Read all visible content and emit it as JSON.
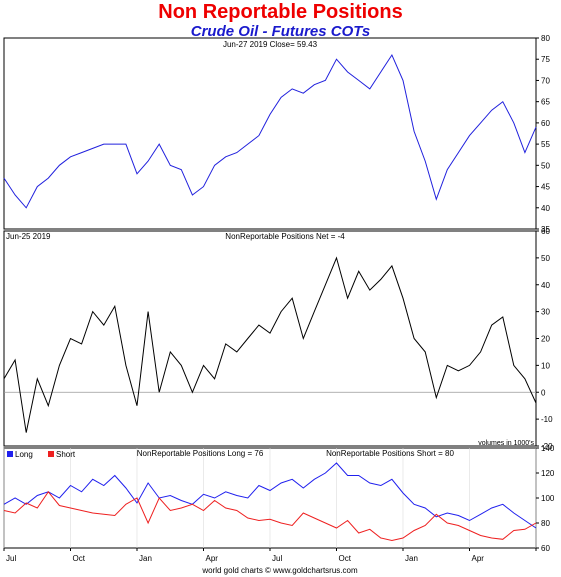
{
  "header": {
    "title": "Non Reportable Positions",
    "subtitle": "Crude Oil - Futures COTs"
  },
  "footer": {
    "credit": "world gold charts © www.goldchartsrus.com"
  },
  "colors": {
    "price": "#2020dd",
    "net": "#000000",
    "long": "#2020ee",
    "short": "#ee2020",
    "title": "#ee0000",
    "subtitle": "#1a1acc"
  },
  "chart_data": [
    {
      "type": "line",
      "panel": "price",
      "annotation": "Jun-27  2019   Close= 59.43",
      "ylim": [
        35,
        80
      ],
      "yticks": [
        35,
        40,
        45,
        50,
        55,
        60,
        65,
        70,
        75,
        80
      ],
      "x_unit": "months since Jul 2017",
      "xlim": [
        0,
        24
      ],
      "x": [
        0,
        0.5,
        1,
        1.5,
        2,
        2.5,
        3,
        3.5,
        4,
        4.5,
        5,
        5.5,
        6,
        6.5,
        7,
        7.5,
        8,
        8.5,
        9,
        9.5,
        10,
        10.5,
        11,
        11.5,
        12,
        12.5,
        13,
        13.5,
        14,
        14.5,
        15,
        15.5,
        16,
        16.5,
        17,
        17.5,
        18,
        18.5,
        19,
        19.5,
        20,
        20.5,
        21,
        21.5,
        22,
        22.5,
        23,
        23.5,
        24
      ],
      "series": [
        {
          "name": "",
          "values": [
            47,
            43,
            40,
            45,
            47,
            50,
            52,
            53,
            54,
            55,
            55,
            55,
            48,
            51,
            55,
            50,
            49,
            43,
            45,
            50,
            52,
            53,
            55,
            57,
            62,
            66,
            68,
            67,
            69,
            70,
            75,
            72,
            70,
            68,
            72,
            76,
            70,
            58,
            51,
            42,
            49,
            53,
            57,
            60,
            63,
            65,
            60,
            53,
            59
          ]
        }
      ]
    },
    {
      "type": "line",
      "panel": "net",
      "annotation_left": "Jun-25  2019",
      "annotation_center": "NonReportable Positions Net = -4",
      "annotation_right": "volumes in 1000's",
      "ylim": [
        -20,
        60
      ],
      "yticks": [
        -20,
        -10,
        0,
        10,
        20,
        30,
        40,
        50,
        60
      ],
      "x_unit": "months since Jul 2017",
      "xlim": [
        0,
        24
      ],
      "x": [
        0,
        0.5,
        1,
        1.5,
        2,
        2.5,
        3,
        3.5,
        4,
        4.5,
        5,
        5.5,
        6,
        6.5,
        7,
        7.5,
        8,
        8.5,
        9,
        9.5,
        10,
        10.5,
        11,
        11.5,
        12,
        12.5,
        13,
        13.5,
        14,
        14.5,
        15,
        15.5,
        16,
        16.5,
        17,
        17.5,
        18,
        18.5,
        19,
        19.5,
        20,
        20.5,
        21,
        21.5,
        22,
        22.5,
        23,
        23.5,
        24
      ],
      "series": [
        {
          "name": "",
          "values": [
            5,
            12,
            -15,
            5,
            -5,
            10,
            20,
            18,
            30,
            25,
            32,
            10,
            -5,
            30,
            0,
            15,
            10,
            0,
            10,
            5,
            18,
            15,
            20,
            25,
            22,
            30,
            35,
            20,
            30,
            40,
            50,
            35,
            45,
            38,
            42,
            47,
            35,
            20,
            15,
            -2,
            10,
            8,
            10,
            15,
            25,
            28,
            10,
            5,
            -4
          ]
        }
      ]
    },
    {
      "type": "line",
      "panel": "long_short",
      "annotation_long": "NonReportable Positions Long = 76",
      "annotation_short": "NonReportable Positions Short = 80",
      "ylim": [
        60,
        140
      ],
      "yticks": [
        60,
        80,
        100,
        120,
        140
      ],
      "x_unit": "months since Jul 2017",
      "xlim": [
        0,
        24
      ],
      "xticks": [
        0,
        3,
        6,
        9,
        12,
        15,
        18,
        21,
        24
      ],
      "xtick_labels": [
        "Jul",
        "Oct",
        "Jan",
        "Apr",
        "Jul",
        "Oct",
        "Jan",
        "Apr",
        ""
      ],
      "x": [
        0,
        0.5,
        1,
        1.5,
        2,
        2.5,
        3,
        3.5,
        4,
        4.5,
        5,
        5.5,
        6,
        6.5,
        7,
        7.5,
        8,
        8.5,
        9,
        9.5,
        10,
        10.5,
        11,
        11.5,
        12,
        12.5,
        13,
        13.5,
        14,
        14.5,
        15,
        15.5,
        16,
        16.5,
        17,
        17.5,
        18,
        18.5,
        19,
        19.5,
        20,
        20.5,
        21,
        21.5,
        22,
        22.5,
        23,
        23.5,
        24
      ],
      "series": [
        {
          "name": "Long",
          "values": [
            95,
            100,
            95,
            102,
            105,
            100,
            110,
            105,
            115,
            110,
            118,
            108,
            96,
            112,
            100,
            102,
            98,
            95,
            103,
            100,
            105,
            102,
            100,
            110,
            106,
            112,
            115,
            108,
            115,
            120,
            128,
            118,
            118,
            112,
            110,
            115,
            104,
            95,
            92,
            85,
            88,
            86,
            82,
            87,
            92,
            95,
            88,
            82,
            76
          ]
        },
        {
          "name": "Short",
          "values": [
            90,
            88,
            96,
            92,
            105,
            94,
            92,
            90,
            88,
            87,
            86,
            95,
            100,
            80,
            100,
            90,
            92,
            95,
            90,
            98,
            92,
            90,
            84,
            82,
            83,
            80,
            78,
            88,
            84,
            80,
            76,
            82,
            72,
            75,
            68,
            66,
            68,
            74,
            78,
            87,
            80,
            78,
            74,
            70,
            68,
            67,
            74,
            75,
            80
          ]
        }
      ]
    }
  ]
}
